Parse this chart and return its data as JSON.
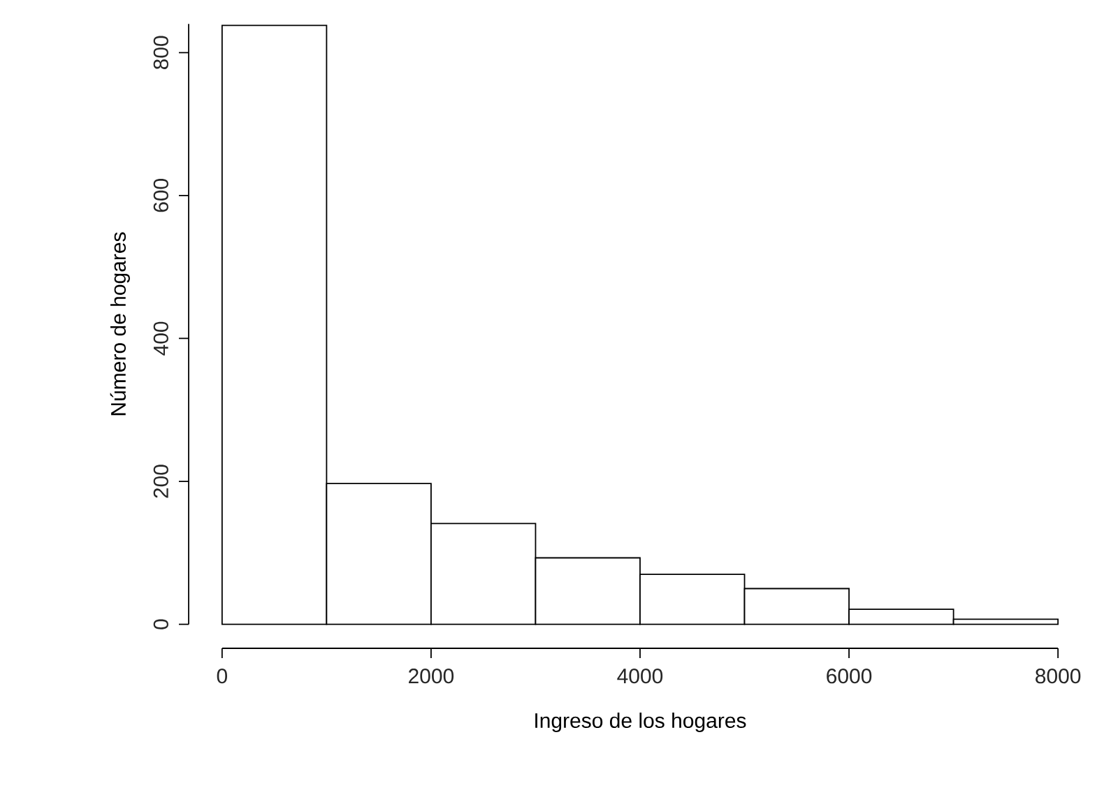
{
  "chart_data": {
    "type": "histogram",
    "xlabel": "Ingreso de los hogares",
    "ylabel": "Número de hogares",
    "bins": [
      0,
      1000,
      2000,
      3000,
      4000,
      5000,
      6000,
      7000,
      8000
    ],
    "values": [
      838,
      197,
      141,
      93,
      70,
      50,
      21,
      7
    ],
    "color": "#ffffff",
    "xlim": [
      0,
      8000
    ],
    "ylim": [
      0,
      840
    ],
    "xticks": [
      0,
      2000,
      4000,
      6000,
      8000
    ],
    "yticks": [
      0,
      200,
      400,
      600,
      800
    ]
  }
}
